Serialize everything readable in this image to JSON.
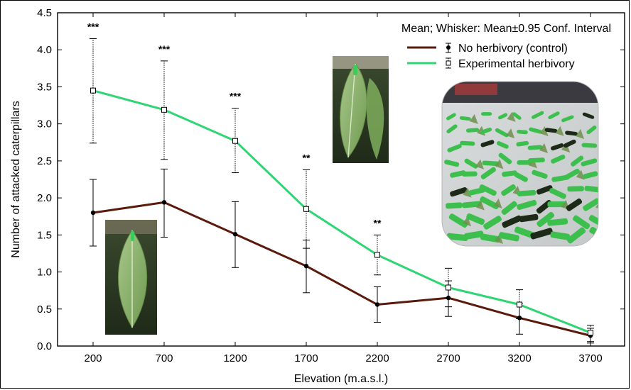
{
  "chart_data": {
    "type": "line",
    "title": "",
    "xlabel": "Elevation (m.a.s.l.)",
    "ylabel": "Number of attacked caterpillars",
    "categories": [
      "200",
      "700",
      "1200",
      "1700",
      "2200",
      "2700",
      "3200",
      "3700"
    ],
    "ylim": [
      0,
      4.5
    ],
    "yticks": [
      "0.0",
      "0.5",
      "1.0",
      "1.5",
      "2.0",
      "2.5",
      "3.0",
      "3.5",
      "4.0",
      "4.5"
    ],
    "grid": false,
    "legend_title": "Mean; Whisker: Mean±0.95 Conf. Interval",
    "legend_position": "top-right",
    "series": [
      {
        "name": "No herbivory (control)",
        "color": "#5a1a0c",
        "marker": "filled-circle",
        "whisker": "solid",
        "values": [
          1.8,
          1.94,
          1.51,
          1.08,
          0.56,
          0.65,
          0.38,
          0.14
        ],
        "lower": [
          1.35,
          1.47,
          1.06,
          0.72,
          0.32,
          0.4,
          0.16,
          0.04
        ],
        "upper": [
          2.25,
          2.39,
          1.95,
          1.43,
          0.8,
          0.88,
          0.58,
          0.24
        ]
      },
      {
        "name": "Experimental herbivory",
        "color": "#2ed573",
        "marker": "open-square",
        "whisker": "dotted",
        "values": [
          3.45,
          3.19,
          2.77,
          1.85,
          1.23,
          0.79,
          0.56,
          0.18
        ],
        "lower": [
          2.74,
          2.52,
          2.34,
          1.32,
          0.96,
          0.53,
          0.37,
          0.06
        ],
        "upper": [
          4.15,
          3.85,
          3.21,
          2.38,
          1.5,
          1.05,
          0.76,
          0.28
        ]
      }
    ],
    "annotations": [
      {
        "category": "200",
        "text": "***"
      },
      {
        "category": "700",
        "text": "***"
      },
      {
        "category": "1200",
        "text": "***"
      },
      {
        "category": "1700",
        "text": "**"
      },
      {
        "category": "2200",
        "text": "**"
      }
    ]
  },
  "images": [
    {
      "name": "intact-leaf-photo"
    },
    {
      "name": "damaged-leaf-photo"
    },
    {
      "name": "caterpillar-tray-photo"
    }
  ]
}
